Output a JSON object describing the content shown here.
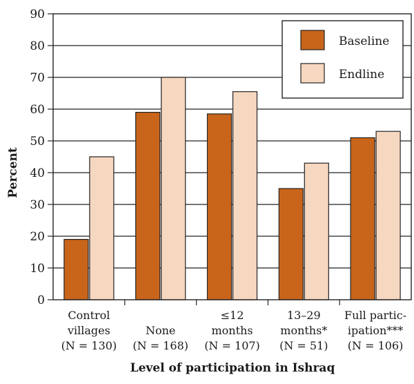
{
  "chart_data": {
    "type": "bar",
    "categories": [
      [
        "Control",
        "villages",
        "(N = 130)"
      ],
      [
        "None",
        "(N = 168)"
      ],
      [
        "≤12",
        "months",
        "(N = 107)"
      ],
      [
        "13–29",
        "months*",
        "(N = 51)"
      ],
      [
        "Full partic-",
        "ipation***",
        "(N = 106)"
      ]
    ],
    "series": [
      {
        "name": "Baseline",
        "values": [
          19,
          59,
          58.5,
          35,
          51
        ],
        "color": "#c8651b"
      },
      {
        "name": "Endline",
        "values": [
          45,
          70,
          65.5,
          43,
          53
        ],
        "color": "#f6d7c0"
      }
    ],
    "xlabel": "Level of participation in Ishraq",
    "ylabel": "Percent",
    "ylim": [
      0,
      90
    ],
    "yticks": [
      0,
      10,
      20,
      30,
      40,
      50,
      60,
      70,
      80,
      90
    ],
    "grid": true,
    "legend": "top-right"
  }
}
